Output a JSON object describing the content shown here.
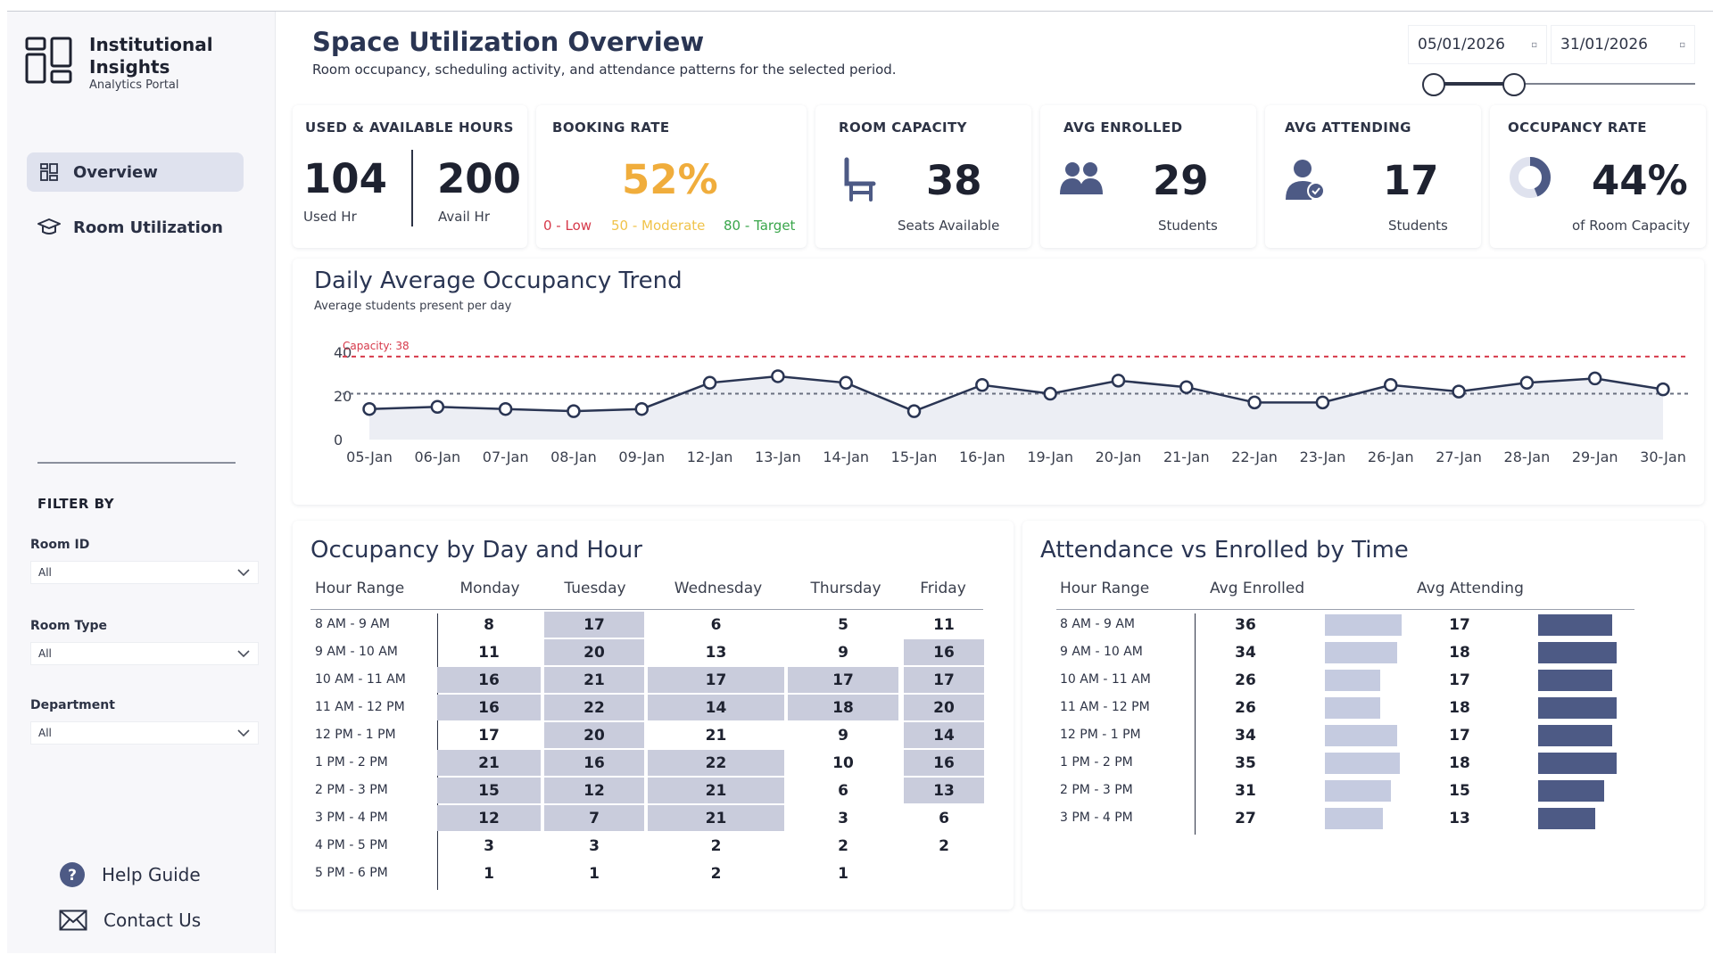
{
  "brand": {
    "title": "Institutional Insights",
    "subtitle": "Analytics Portal"
  },
  "nav": [
    {
      "label": "Overview",
      "icon": "dashboard-grid-icon",
      "active": true
    },
    {
      "label": "Room Utilization",
      "icon": "graduation-cap-icon",
      "active": false
    }
  ],
  "filters": {
    "title": "FILTER BY",
    "items": [
      {
        "label": "Room ID",
        "value": "All"
      },
      {
        "label": "Room Type",
        "value": "All"
      },
      {
        "label": "Department",
        "value": "All"
      }
    ]
  },
  "footer": {
    "help": "Help Guide",
    "contact": "Contact Us"
  },
  "header": {
    "title": "Space Utilization Overview",
    "subtitle": "Room occupancy, scheduling activity, and attendance patterns for the selected period.",
    "date_start": "05/01/2026",
    "date_end": "31/01/2026"
  },
  "kpis": {
    "hours": {
      "title": "USED & AVAILABLE HOURS",
      "used": "104",
      "used_label": "Used Hr",
      "avail": "200",
      "avail_label": "Avail Hr"
    },
    "booking": {
      "title": "BOOKING RATE",
      "value": "52%",
      "legend_low": "0 - Low",
      "legend_mod": "50 - Moderate",
      "legend_target": "80 - Target"
    },
    "capacity": {
      "title": "ROOM CAPACITY",
      "value": "38",
      "caption": "Seats Available"
    },
    "enrolled": {
      "title": "AVG ENROLLED",
      "value": "29",
      "caption": "Students"
    },
    "attending": {
      "title": "AVG ATTENDING",
      "value": "17",
      "caption": "Students"
    },
    "occupancy": {
      "title": "OCCUPANCY RATE",
      "value": "44%",
      "caption": "of Room Capacity",
      "fraction": 0.44
    }
  },
  "colors": {
    "accent": "#2a3553",
    "booking_value": "#f0ad3c",
    "low": "#d6394a",
    "moderate": "#f0c34a",
    "target": "#3aa64b",
    "capacity_line": "#d6394a",
    "series": "#2a3553"
  },
  "trend": {
    "title": "Daily Average Occupancy Trend",
    "subtitle": "Average students present per day",
    "capacity_label": "Capacity: 38"
  },
  "chart_data": {
    "type": "line",
    "x": [
      "05-Jan",
      "06-Jan",
      "07-Jan",
      "08-Jan",
      "09-Jan",
      "12-Jan",
      "13-Jan",
      "14-Jan",
      "15-Jan",
      "16-Jan",
      "19-Jan",
      "20-Jan",
      "21-Jan",
      "22-Jan",
      "23-Jan",
      "26-Jan",
      "27-Jan",
      "28-Jan",
      "29-Jan",
      "30-Jan"
    ],
    "values": [
      14,
      15,
      14,
      13,
      14,
      26,
      29,
      26,
      13,
      25,
      21,
      27,
      24,
      17,
      17,
      25,
      22,
      26,
      28,
      23
    ],
    "capacity": 38,
    "reference": 21,
    "yticks": [
      0,
      20,
      40
    ],
    "ylim": [
      0,
      40
    ]
  },
  "heatmap": {
    "title": "Occupancy by Day and Hour",
    "columns": [
      "Hour Range",
      "Monday",
      "Tuesday",
      "Wednesday",
      "Thursday",
      "Friday"
    ],
    "rows": [
      {
        "hour": "8 AM - 9 AM",
        "values": [
          "8",
          "17",
          "6",
          "5",
          "11"
        ],
        "hl": [
          false,
          true,
          false,
          false,
          false
        ]
      },
      {
        "hour": "9 AM - 10 AM",
        "values": [
          "11",
          "20",
          "13",
          "9",
          "16"
        ],
        "hl": [
          false,
          true,
          false,
          false,
          true
        ]
      },
      {
        "hour": "10 AM - 11 AM",
        "values": [
          "16",
          "21",
          "17",
          "17",
          "17"
        ],
        "hl": [
          true,
          true,
          true,
          true,
          true
        ]
      },
      {
        "hour": "11 AM - 12 PM",
        "values": [
          "16",
          "22",
          "14",
          "18",
          "20"
        ],
        "hl": [
          true,
          true,
          true,
          true,
          true
        ]
      },
      {
        "hour": "12 PM - 1 PM",
        "values": [
          "17",
          "20",
          "21",
          "9",
          "14"
        ],
        "hl": [
          false,
          true,
          false,
          false,
          true
        ]
      },
      {
        "hour": "1 PM - 2 PM",
        "values": [
          "21",
          "16",
          "22",
          "10",
          "16"
        ],
        "hl": [
          true,
          true,
          true,
          false,
          true
        ]
      },
      {
        "hour": "2 PM - 3 PM",
        "values": [
          "15",
          "12",
          "21",
          "6",
          "13"
        ],
        "hl": [
          true,
          true,
          true,
          false,
          true
        ]
      },
      {
        "hour": "3 PM - 4 PM",
        "values": [
          "12",
          "7",
          "21",
          "3",
          "6"
        ],
        "hl": [
          true,
          true,
          true,
          false,
          false
        ]
      },
      {
        "hour": "4 PM - 5 PM",
        "values": [
          "3",
          "3",
          "2",
          "2",
          "2"
        ],
        "hl": [
          false,
          false,
          false,
          false,
          false
        ]
      },
      {
        "hour": "5 PM - 6 PM",
        "values": [
          "1",
          "1",
          "2",
          "1",
          ""
        ],
        "hl": [
          false,
          false,
          false,
          false,
          false
        ]
      }
    ]
  },
  "attendance": {
    "title": "Attendance vs Enrolled by Time",
    "columns": [
      "Hour Range",
      "Avg Enrolled",
      "Avg Attending"
    ],
    "bar_max": 36,
    "rows": [
      {
        "hour": "8 AM - 9 AM",
        "enrolled": "36",
        "attending": "17"
      },
      {
        "hour": "9 AM - 10 AM",
        "enrolled": "34",
        "attending": "18"
      },
      {
        "hour": "10 AM - 11 AM",
        "enrolled": "26",
        "attending": "17"
      },
      {
        "hour": "11 AM - 12 PM",
        "enrolled": "26",
        "attending": "18"
      },
      {
        "hour": "12 PM - 1 PM",
        "enrolled": "34",
        "attending": "17"
      },
      {
        "hour": "1 PM - 2 PM",
        "enrolled": "35",
        "attending": "18"
      },
      {
        "hour": "2 PM - 3 PM",
        "enrolled": "31",
        "attending": "15"
      },
      {
        "hour": "3 PM - 4 PM",
        "enrolled": "27",
        "attending": "13"
      }
    ]
  }
}
